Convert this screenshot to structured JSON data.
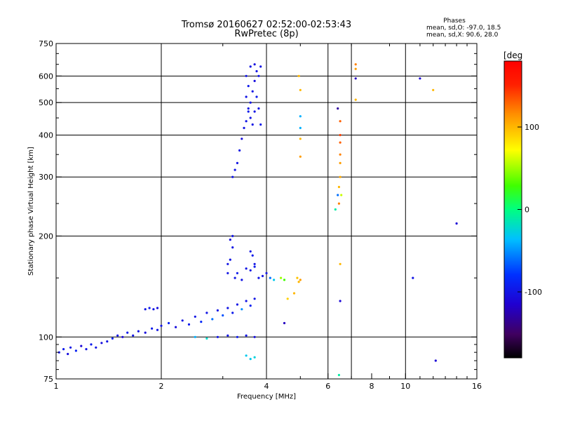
{
  "chart_data": {
    "type": "scatter",
    "title": "Tromsø 20160627 02:52:00-02:53:43",
    "subtitle": "RwPretec (8p)",
    "xlabel": "Frequency [MHz]",
    "ylabel": "Stationary phase Virtual Height [km]",
    "xscale": "log",
    "yscale": "log",
    "xlim": [
      1,
      16
    ],
    "ylim": [
      75,
      750
    ],
    "xticks": [
      1,
      2,
      4,
      6,
      8,
      10,
      16
    ],
    "xtick_labels": [
      "1",
      "2",
      "4",
      "6",
      "8",
      "10",
      "16"
    ],
    "xgrid": [
      2,
      4,
      6,
      7,
      10
    ],
    "yticks": [
      75,
      100,
      200,
      300,
      400,
      500,
      600,
      750
    ],
    "ytick_labels": [
      "75",
      "100",
      "200",
      "300",
      "400",
      "500",
      "600",
      "750"
    ],
    "legend": {
      "title": "Phases",
      "lines": [
        "mean, sd,O: -97.0, 18.5",
        "mean, sd,X:  90.6, 28.0"
      ],
      "position": "top-right"
    },
    "colorbar": {
      "label": "[deg",
      "range": [
        -180,
        180
      ],
      "ticks": [
        100,
        0,
        -100
      ],
      "tick_labels": [
        "100",
        "0",
        "-100"
      ]
    },
    "series": [
      {
        "name": "echoes",
        "points": [
          [
            1.02,
            90,
            -100
          ],
          [
            1.05,
            92,
            -95
          ],
          [
            1.08,
            89,
            -105
          ],
          [
            1.1,
            93,
            -100
          ],
          [
            1.14,
            91,
            -90
          ],
          [
            1.18,
            94,
            -110
          ],
          [
            1.22,
            92,
            -100
          ],
          [
            1.26,
            95,
            -95
          ],
          [
            1.3,
            93,
            -100
          ],
          [
            1.35,
            96,
            -105
          ],
          [
            1.4,
            97,
            -100
          ],
          [
            1.45,
            99,
            -90
          ],
          [
            1.5,
            101,
            -100
          ],
          [
            1.55,
            100,
            -110
          ],
          [
            1.6,
            103,
            -95
          ],
          [
            1.66,
            101,
            -100
          ],
          [
            1.72,
            104,
            -100
          ],
          [
            1.8,
            103,
            -105
          ],
          [
            1.88,
            106,
            -95
          ],
          [
            1.95,
            105,
            -100
          ],
          [
            2.0,
            108,
            -100
          ],
          [
            2.1,
            110,
            -90
          ],
          [
            2.2,
            107,
            -105
          ],
          [
            2.3,
            112,
            -100
          ],
          [
            2.4,
            109,
            -95
          ],
          [
            2.5,
            115,
            -100
          ],
          [
            2.6,
            111,
            -85
          ],
          [
            2.7,
            118,
            -100
          ],
          [
            2.8,
            113,
            -60
          ],
          [
            2.9,
            120,
            -100
          ],
          [
            3.0,
            116,
            -70
          ],
          [
            3.1,
            122,
            -100
          ],
          [
            3.2,
            118,
            -95
          ],
          [
            3.3,
            125,
            -100
          ],
          [
            3.4,
            121,
            -50
          ],
          [
            3.5,
            128,
            -100
          ],
          [
            3.6,
            124,
            -90
          ],
          [
            3.7,
            130,
            -100
          ],
          [
            1.8,
            121,
            -100
          ],
          [
            1.85,
            122,
            -95
          ],
          [
            1.9,
            121,
            -100
          ],
          [
            1.95,
            122,
            -105
          ],
          [
            2.5,
            100,
            -40
          ],
          [
            2.7,
            99,
            -20
          ],
          [
            2.9,
            100,
            -100
          ],
          [
            3.1,
            101,
            -100
          ],
          [
            3.3,
            100,
            -95
          ],
          [
            3.5,
            101,
            -100
          ],
          [
            3.7,
            100,
            -105
          ],
          [
            3.6,
            86,
            -30
          ],
          [
            3.7,
            87,
            -25
          ],
          [
            3.5,
            88,
            -30
          ],
          [
            3.25,
            150,
            -100
          ],
          [
            3.3,
            155,
            -95
          ],
          [
            3.4,
            148,
            -100
          ],
          [
            3.5,
            160,
            -100
          ],
          [
            3.6,
            158,
            -100
          ],
          [
            3.7,
            162,
            -95
          ],
          [
            3.8,
            150,
            -100
          ],
          [
            3.9,
            152,
            -100
          ],
          [
            4.0,
            155,
            -100
          ],
          [
            4.1,
            150,
            -60
          ],
          [
            4.2,
            148,
            -30
          ],
          [
            4.4,
            150,
            50
          ],
          [
            4.5,
            148,
            30
          ],
          [
            4.9,
            150,
            95
          ],
          [
            4.95,
            146,
            100
          ],
          [
            5.0,
            148,
            110
          ],
          [
            4.6,
            130,
            90
          ],
          [
            4.8,
            135,
            100
          ],
          [
            4.5,
            110,
            -120
          ],
          [
            3.1,
            155,
            -100
          ],
          [
            3.15,
            170,
            -100
          ],
          [
            3.2,
            185,
            -100
          ],
          [
            3.2,
            200,
            -100
          ],
          [
            3.15,
            195,
            -105
          ],
          [
            3.1,
            165,
            -100
          ],
          [
            3.6,
            180,
            -100
          ],
          [
            3.65,
            175,
            -95
          ],
          [
            3.7,
            165,
            -100
          ],
          [
            3.2,
            300,
            -100
          ],
          [
            3.25,
            315,
            -100
          ],
          [
            3.3,
            330,
            -100
          ],
          [
            3.35,
            360,
            -100
          ],
          [
            3.4,
            390,
            -105
          ],
          [
            3.45,
            420,
            -100
          ],
          [
            3.5,
            440,
            -100
          ],
          [
            3.55,
            470,
            -95
          ],
          [
            3.6,
            500,
            -100
          ],
          [
            3.65,
            540,
            -100
          ],
          [
            3.7,
            580,
            -105
          ],
          [
            3.75,
            620,
            -100
          ],
          [
            3.5,
            600,
            -100
          ],
          [
            3.55,
            560,
            -95
          ],
          [
            3.6,
            450,
            -100
          ],
          [
            3.65,
            430,
            -100
          ],
          [
            3.7,
            470,
            -100
          ],
          [
            3.75,
            520,
            -95
          ],
          [
            3.8,
            600,
            -100
          ],
          [
            3.85,
            640,
            -100
          ],
          [
            3.6,
            640,
            -100
          ],
          [
            3.7,
            650,
            -105
          ],
          [
            3.5,
            520,
            -100
          ],
          [
            3.55,
            480,
            -100
          ],
          [
            3.8,
            480,
            -100
          ],
          [
            3.85,
            430,
            -95
          ],
          [
            4.95,
            600,
            100
          ],
          [
            5.0,
            545,
            100
          ],
          [
            5.0,
            455,
            -40
          ],
          [
            5.0,
            420,
            -40
          ],
          [
            5.0,
            345,
            110
          ],
          [
            5.0,
            390,
            100
          ],
          [
            6.4,
            480,
            -130
          ],
          [
            6.5,
            440,
            130
          ],
          [
            6.5,
            400,
            140
          ],
          [
            6.5,
            380,
            130
          ],
          [
            6.5,
            350,
            120
          ],
          [
            6.5,
            330,
            110
          ],
          [
            6.5,
            300,
            105
          ],
          [
            6.45,
            280,
            100
          ],
          [
            6.4,
            265,
            -60
          ],
          [
            6.55,
            265,
            60
          ],
          [
            6.45,
            250,
            120
          ],
          [
            6.3,
            240,
            -10
          ],
          [
            6.5,
            165,
            100
          ],
          [
            6.5,
            128,
            -110
          ],
          [
            6.45,
            77,
            -10
          ],
          [
            7.2,
            650,
            120
          ],
          [
            7.2,
            630,
            110
          ],
          [
            7.2,
            590,
            -120
          ],
          [
            7.2,
            510,
            100
          ],
          [
            11.0,
            590,
            -110
          ],
          [
            12.0,
            545,
            100
          ],
          [
            14.0,
            218,
            -110
          ],
          [
            12.2,
            85,
            -110
          ],
          [
            10.5,
            150,
            -100
          ]
        ]
      }
    ]
  }
}
